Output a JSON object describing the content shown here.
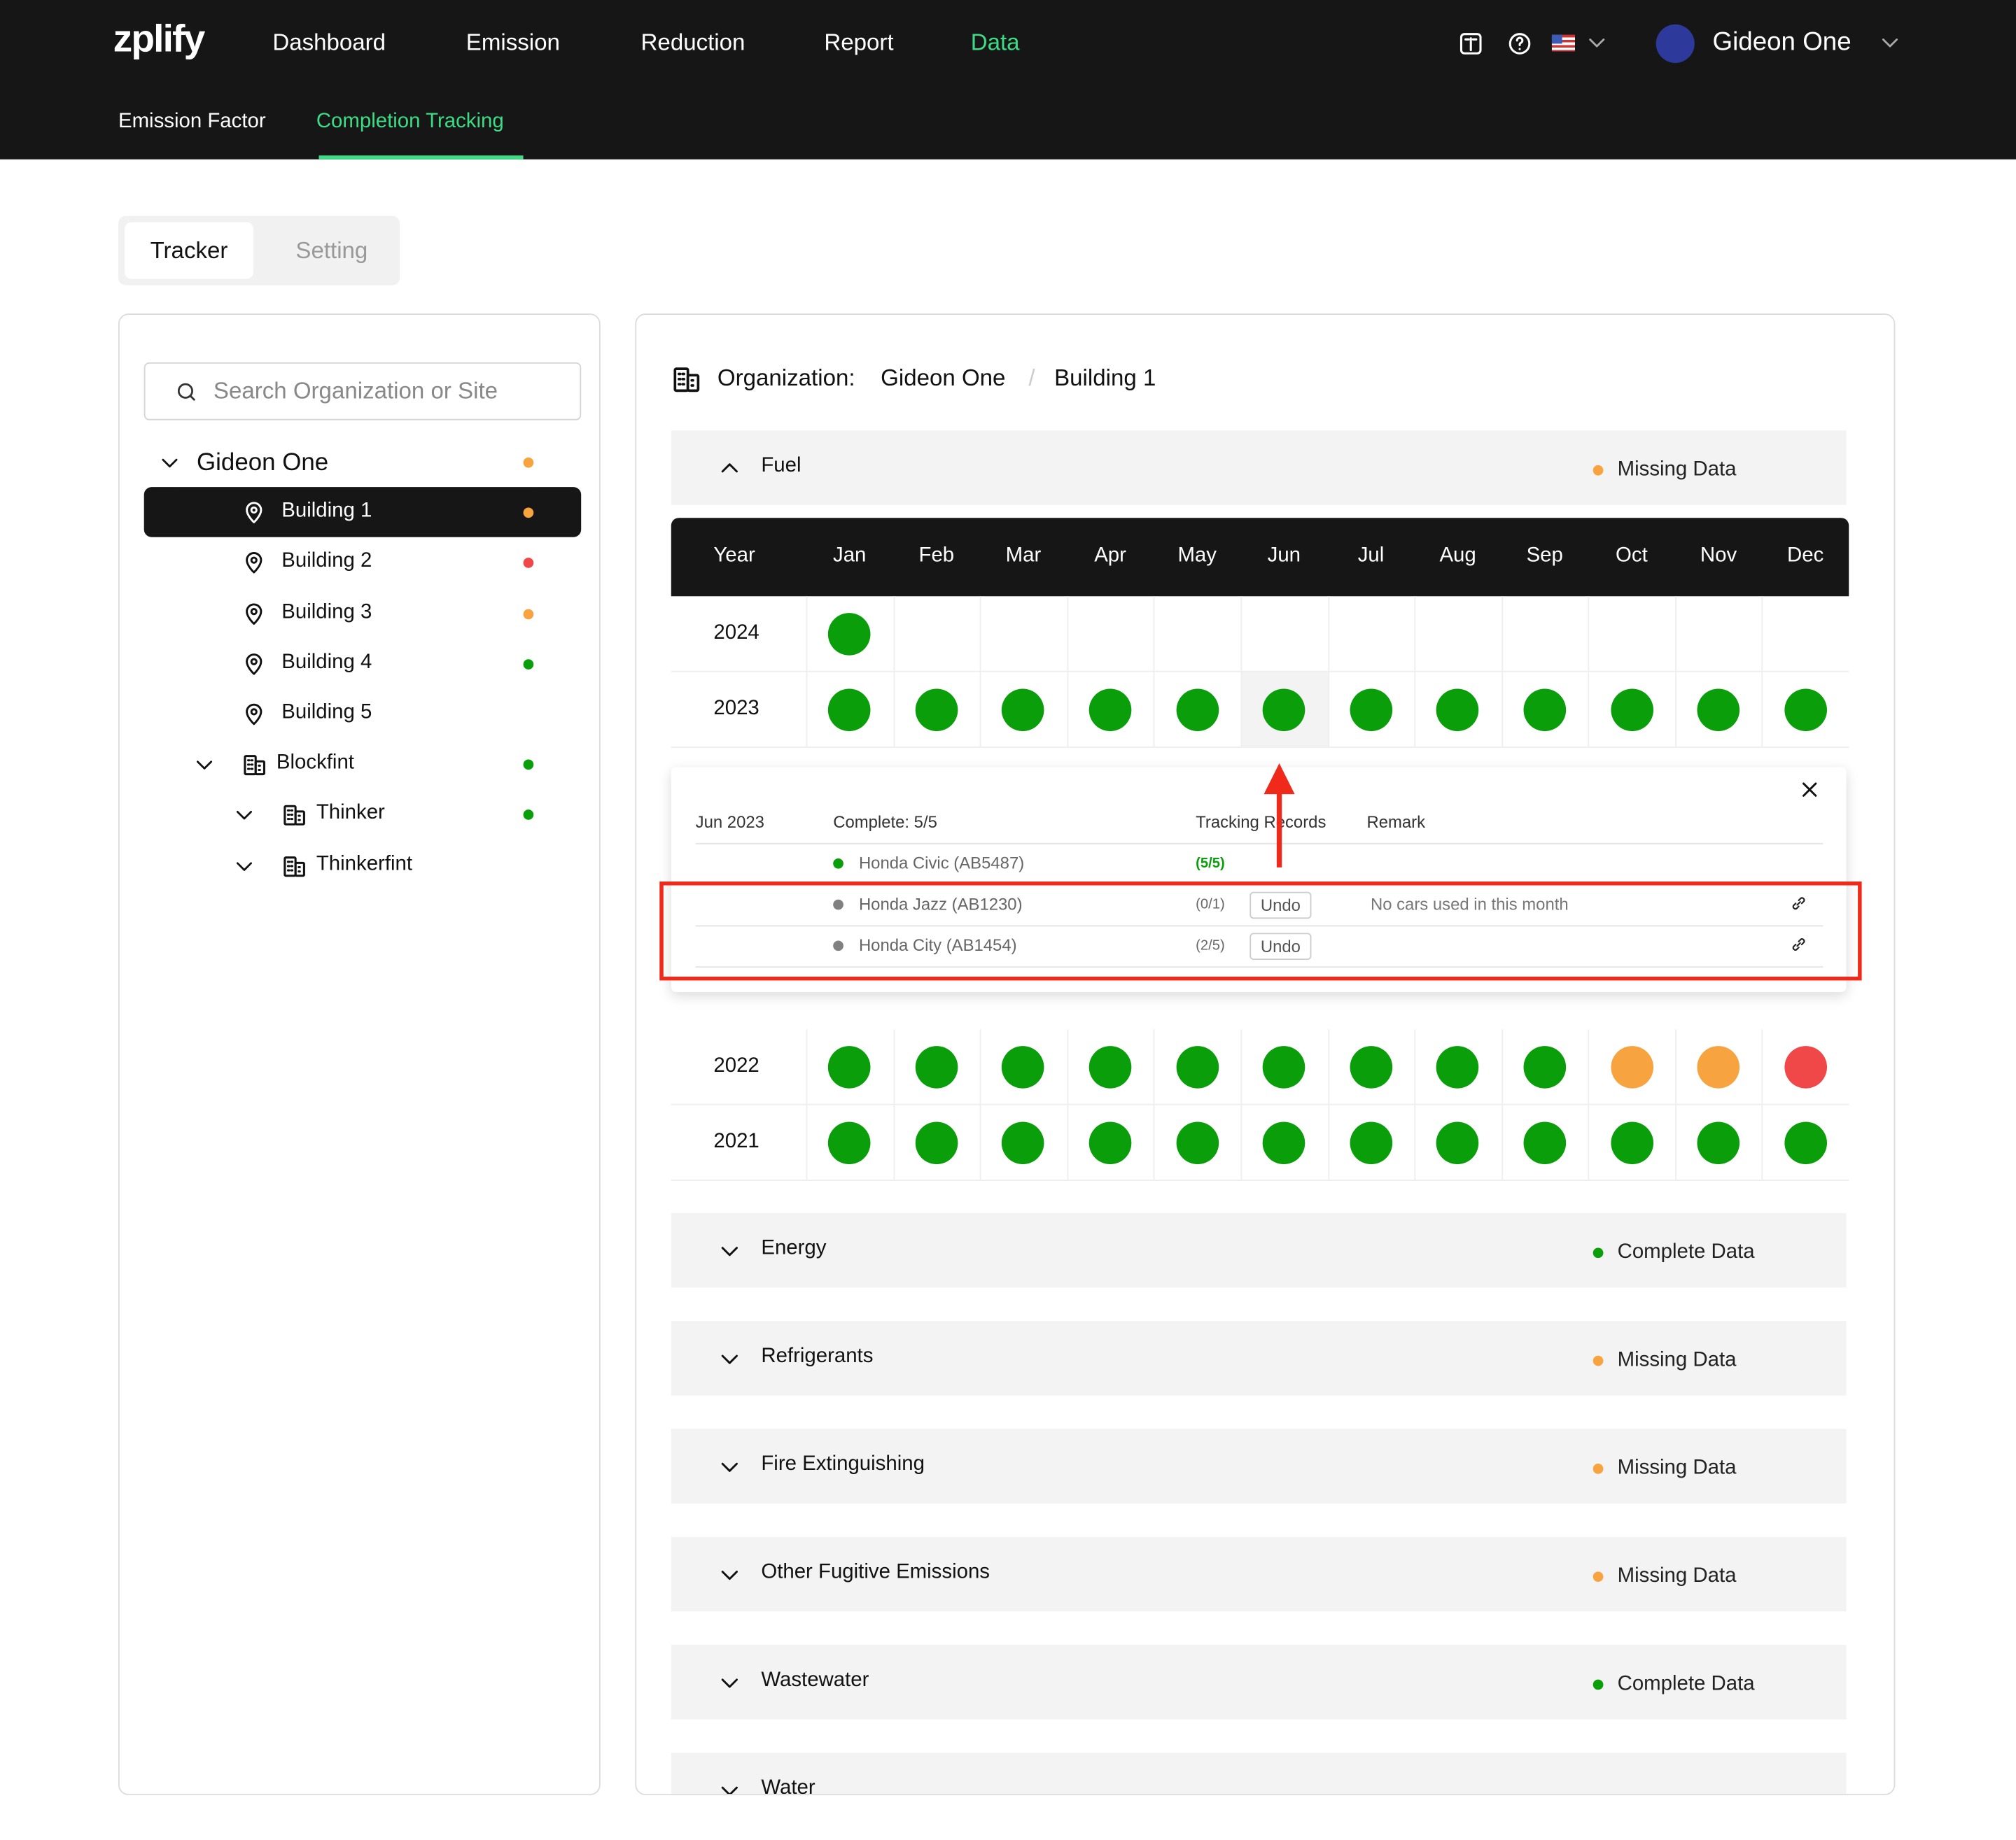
{
  "nav": {
    "logo": "zplify",
    "items": [
      "Dashboard",
      "Emission",
      "Reduction",
      "Report",
      "Data"
    ],
    "active": 4,
    "user": "Gideon One"
  },
  "subnav": {
    "items": [
      "Emission Factor",
      "Completion Tracking"
    ],
    "active": 1
  },
  "tabs": {
    "items": [
      "Tracker",
      "Setting"
    ],
    "active": 0
  },
  "sidebar": {
    "search_placeholder": "Search Organization or Site",
    "tree": [
      {
        "label": "Gideon One",
        "status": "missing",
        "children": [
          {
            "label": "Building 1",
            "status": "missing"
          },
          {
            "label": "Building 2",
            "status": "incomplete"
          },
          {
            "label": "Building 3",
            "status": "missing"
          },
          {
            "label": "Building 4",
            "status": "complete"
          },
          {
            "label": "Building 5"
          },
          {
            "label": "Blockfint",
            "status": "complete",
            "children": [
              {
                "label": "Thinker",
                "status": "complete",
                "children": []
              },
              {
                "label": "Thinkerfint",
                "children": []
              }
            ]
          }
        ]
      }
    ]
  },
  "main": {
    "org_label": "Organization:",
    "org": "Gideon One",
    "site": "Building 1",
    "sections": [
      {
        "name": "Fuel",
        "status_label": "Missing Data",
        "status": "missing",
        "expanded": true
      },
      {
        "name": "Energy",
        "status_label": "Complete Data",
        "status": "complete"
      },
      {
        "name": "Refrigerants",
        "status_label": "Missing Data",
        "status": "missing"
      },
      {
        "name": "Fire Extinguishing",
        "status_label": "Missing Data",
        "status": "missing"
      },
      {
        "name": "Other Fugitive Emissions",
        "status_label": "Missing Data",
        "status": "missing"
      },
      {
        "name": "Wastewater",
        "status_label": "Complete Data",
        "status": "complete"
      },
      {
        "name": "Water"
      }
    ],
    "grid": {
      "header_year": "Year",
      "months": [
        "Jan",
        "Feb",
        "Mar",
        "Apr",
        "May",
        "Jun",
        "Jul",
        "Aug",
        "Sep",
        "Oct",
        "Nov",
        "Dec"
      ],
      "rows": [
        {
          "year": "2024",
          "cells": [
            "complete",
            null,
            null,
            null,
            null,
            null,
            null,
            null,
            null,
            null,
            null,
            null
          ]
        },
        {
          "year": "2023",
          "cells": [
            "complete",
            "complete",
            "complete",
            "complete",
            "complete",
            "complete",
            "complete",
            "complete",
            "complete",
            "complete",
            "complete",
            "complete"
          ]
        },
        {
          "year": "2022",
          "cells": [
            "complete",
            "complete",
            "complete",
            "complete",
            "complete",
            "complete",
            "complete",
            "complete",
            "complete",
            "missing",
            "missing",
            "incomplete"
          ]
        },
        {
          "year": "2021",
          "cells": [
            "complete",
            "complete",
            "complete",
            "complete",
            "complete",
            "complete",
            "complete",
            "complete",
            "complete",
            "complete",
            "complete",
            "complete"
          ]
        }
      ]
    },
    "detail": {
      "period": "Jun 2023",
      "summary": "Complete: 5/5",
      "col_records": "Tracking Records",
      "col_remark": "Remark",
      "rows": [
        {
          "name": "Honda Civic (AB5487)",
          "status": "complete",
          "records": "(5/5)"
        },
        {
          "name": "Honda Jazz (AB1230)",
          "status": "pending",
          "records": "(0/1)",
          "action": "Undo",
          "remark": "No cars used in this month"
        },
        {
          "name": "Honda City (AB1454)",
          "status": "pending",
          "records": "(2/5)",
          "action": "Undo"
        }
      ]
    }
  }
}
